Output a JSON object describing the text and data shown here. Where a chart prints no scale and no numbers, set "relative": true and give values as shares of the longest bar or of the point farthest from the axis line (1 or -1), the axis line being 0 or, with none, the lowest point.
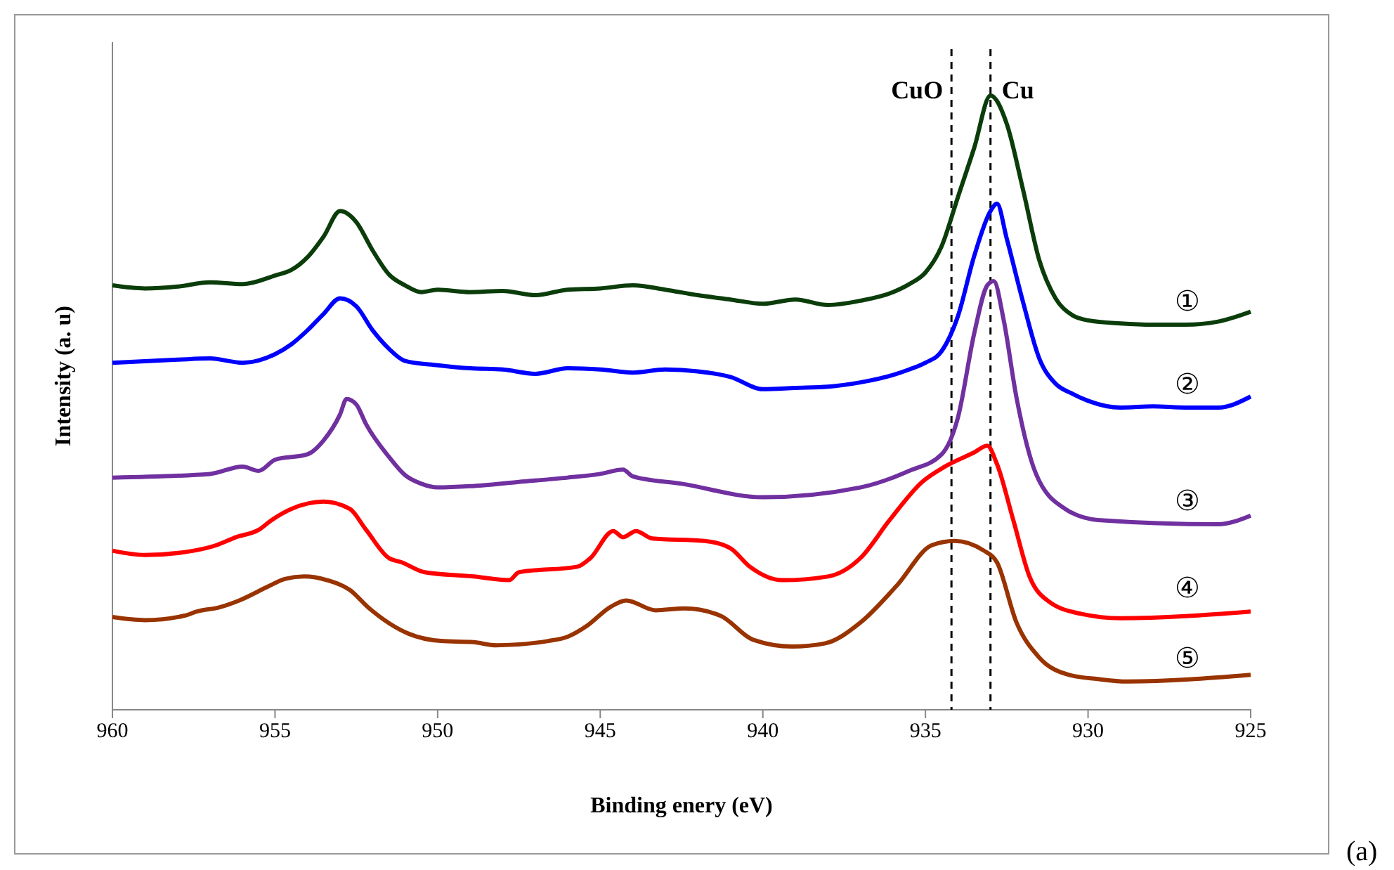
{
  "chart_data": {
    "type": "line",
    "relative": true,
    "xlabel": "Binding enery (eV)",
    "ylabel": "Intensity (a. u)",
    "xlim": [
      960,
      925
    ],
    "xticks": [
      960,
      955,
      950,
      945,
      940,
      935,
      930,
      925
    ],
    "tick_labels": "x",
    "grid": false,
    "marker": "none",
    "line_style": "solid",
    "ref_lines": [
      {
        "axis": "x",
        "value": 934.2,
        "label": "CuO",
        "color": "#000000",
        "line_style": "dashed"
      },
      {
        "axis": "x",
        "value": 933.0,
        "label": "Cu",
        "color": "#000000",
        "line_style": "dashed"
      }
    ],
    "annotations": [
      "(a)"
    ],
    "series": [
      {
        "name": "①",
        "color": "#0b3d0b",
        "x": [
          960,
          959,
          958,
          957,
          956,
          955,
          954.5,
          954,
          953.5,
          953,
          952.5,
          952,
          951.5,
          951,
          950.5,
          950,
          949,
          948,
          947,
          946,
          945,
          944,
          943,
          942,
          941,
          940,
          939,
          938,
          937,
          936,
          935.5,
          935,
          934.5,
          934,
          933.5,
          933,
          932.5,
          932,
          931.5,
          931,
          930.5,
          930,
          929,
          928,
          927,
          926,
          925
        ],
        "values": [
          0.691,
          0.686,
          0.689,
          0.696,
          0.693,
          0.707,
          0.716,
          0.737,
          0.771,
          0.812,
          0.794,
          0.748,
          0.709,
          0.691,
          0.68,
          0.684,
          0.68,
          0.682,
          0.675,
          0.684,
          0.686,
          0.691,
          0.684,
          0.675,
          0.668,
          0.661,
          0.668,
          0.659,
          0.666,
          0.68,
          0.693,
          0.712,
          0.755,
          0.835,
          0.915,
          1.0,
          0.954,
          0.847,
          0.732,
          0.67,
          0.643,
          0.634,
          0.629,
          0.627,
          0.627,
          0.632,
          0.648
        ]
      },
      {
        "name": "②",
        "color": "#0000ff",
        "x": [
          960,
          958,
          957,
          956,
          955,
          954.5,
          954,
          953.5,
          953,
          952.5,
          952,
          951.5,
          951,
          950,
          949,
          948,
          947,
          946,
          945,
          944,
          943,
          942,
          941,
          940,
          939,
          938,
          937,
          936,
          935.5,
          935,
          934.5,
          934,
          933.5,
          933,
          932.8,
          932.5,
          932,
          931.5,
          931,
          930.5,
          930,
          929,
          928,
          927,
          926,
          925
        ],
        "values": [
          0.565,
          0.57,
          0.572,
          0.565,
          0.579,
          0.595,
          0.618,
          0.645,
          0.67,
          0.657,
          0.618,
          0.588,
          0.568,
          0.561,
          0.556,
          0.554,
          0.547,
          0.556,
          0.554,
          0.549,
          0.554,
          0.551,
          0.542,
          0.522,
          0.524,
          0.526,
          0.533,
          0.545,
          0.554,
          0.565,
          0.584,
          0.641,
          0.739,
          0.812,
          0.824,
          0.767,
          0.664,
          0.572,
          0.531,
          0.515,
          0.503,
          0.492,
          0.494,
          0.492,
          0.492,
          0.51
        ]
      },
      {
        "name": "③",
        "color": "#7030a0",
        "x": [
          960,
          957,
          956,
          955.5,
          955,
          954,
          953.5,
          953,
          952.8,
          952.5,
          952.2,
          951.5,
          951,
          950.5,
          950,
          949,
          947.5,
          946,
          945,
          944.3,
          944,
          942.5,
          940,
          937,
          935.5,
          934.5,
          934,
          933.5,
          933.1,
          932.9,
          932.6,
          932.2,
          931.6,
          930.7,
          929.7,
          926,
          925
        ],
        "values": [
          0.378,
          0.384,
          0.396,
          0.389,
          0.407,
          0.416,
          0.439,
          0.481,
          0.506,
          0.497,
          0.465,
          0.412,
          0.382,
          0.368,
          0.362,
          0.364,
          0.371,
          0.378,
          0.384,
          0.391,
          0.38,
          0.368,
          0.346,
          0.362,
          0.389,
          0.416,
          0.476,
          0.613,
          0.691,
          0.698,
          0.636,
          0.508,
          0.384,
          0.327,
          0.309,
          0.302,
          0.316
        ]
      },
      {
        "name": "④",
        "color": "#ff0000",
        "x": [
          960,
          959,
          957.5,
          956.8,
          956.2,
          955.5,
          955.1,
          954.5,
          953.5,
          952.7,
          952.2,
          951.5,
          951.1,
          950.4,
          948.9,
          947.8,
          947.5,
          945.7,
          945.3,
          944.6,
          944.3,
          943.9,
          943.4,
          941.8,
          941.0,
          940.4,
          939.4,
          938.0,
          937.0,
          936.1,
          935.1,
          934.4,
          933.5,
          933.1,
          932.8,
          932.3,
          931.8,
          931.2,
          930.2,
          929.0,
          925
        ],
        "values": [
          0.259,
          0.252,
          0.259,
          0.268,
          0.281,
          0.293,
          0.309,
          0.327,
          0.339,
          0.327,
          0.293,
          0.247,
          0.24,
          0.224,
          0.217,
          0.211,
          0.224,
          0.233,
          0.247,
          0.291,
          0.281,
          0.291,
          0.279,
          0.275,
          0.263,
          0.233,
          0.211,
          0.217,
          0.247,
          0.309,
          0.371,
          0.396,
          0.419,
          0.43,
          0.4,
          0.309,
          0.217,
          0.176,
          0.156,
          0.149,
          0.16
        ]
      },
      {
        "name": "⑤",
        "color": "#993300",
        "x": [
          960,
          959,
          957.8,
          957.4,
          956.7,
          956.1,
          955.2,
          954.7,
          954.1,
          953.4,
          952.7,
          952.1,
          950.9,
          949.9,
          948.9,
          948.2,
          946.6,
          946.0,
          945.4,
          944.7,
          944.2,
          943.3,
          942.4,
          941.3,
          940.3,
          939.1,
          938.1,
          937.0,
          935.9,
          934.8,
          934.1,
          933.2,
          932.8,
          932.2,
          931.5,
          930.6,
          929.7,
          928.8,
          925
        ],
        "values": [
          0.151,
          0.146,
          0.153,
          0.16,
          0.167,
          0.178,
          0.201,
          0.213,
          0.217,
          0.211,
          0.195,
          0.165,
          0.124,
          0.112,
          0.11,
          0.105,
          0.112,
          0.119,
          0.137,
          0.167,
          0.178,
          0.162,
          0.165,
          0.153,
          0.114,
          0.103,
          0.108,
          0.142,
          0.201,
          0.268,
          0.275,
          0.259,
          0.24,
          0.142,
          0.085,
          0.057,
          0.05,
          0.046,
          0.057
        ]
      }
    ]
  }
}
